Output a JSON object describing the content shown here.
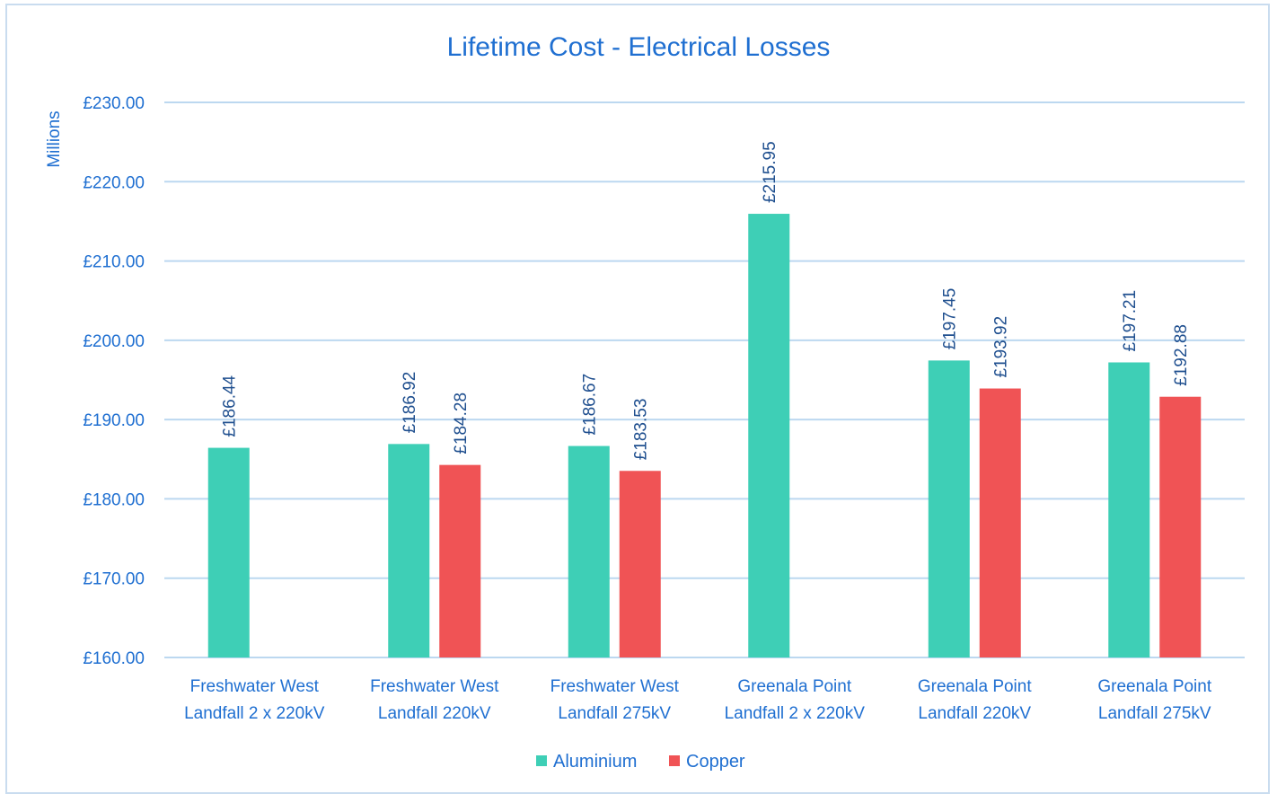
{
  "chart_data": {
    "type": "bar",
    "title": "Lifetime Cost - Electrical Losses",
    "xlabel": "",
    "ylabel": "Millions",
    "ylim": [
      160,
      230
    ],
    "yticks": [
      "£160.00",
      "£170.00",
      "£180.00",
      "£190.00",
      "£200.00",
      "£210.00",
      "£220.00",
      "£230.00"
    ],
    "grid": true,
    "legend_position": "bottom",
    "categories": [
      [
        "Freshwater West",
        "Landfall 2 x 220kV"
      ],
      [
        "Freshwater West",
        "Landfall 220kV"
      ],
      [
        "Freshwater West",
        "Landfall 275kV"
      ],
      [
        "Greenala Point",
        "Landfall 2 x 220kV"
      ],
      [
        "Greenala Point",
        "Landfall 220kV"
      ],
      [
        "Greenala Point",
        "Landfall 275kV"
      ]
    ],
    "series": [
      {
        "name": "Aluminium",
        "color": "#3ecfb6",
        "values": [
          186.44,
          186.92,
          186.67,
          215.95,
          197.45,
          197.21
        ],
        "labels": [
          "£186.44",
          "£186.92",
          "£186.67",
          "£215.95",
          "£197.45",
          "£197.21"
        ]
      },
      {
        "name": "Copper",
        "color": "#f05355",
        "values": [
          null,
          184.28,
          183.53,
          null,
          193.92,
          192.88
        ],
        "labels": [
          "",
          "£184.28",
          "£183.53",
          "",
          "£193.92",
          "£192.88"
        ]
      }
    ]
  }
}
